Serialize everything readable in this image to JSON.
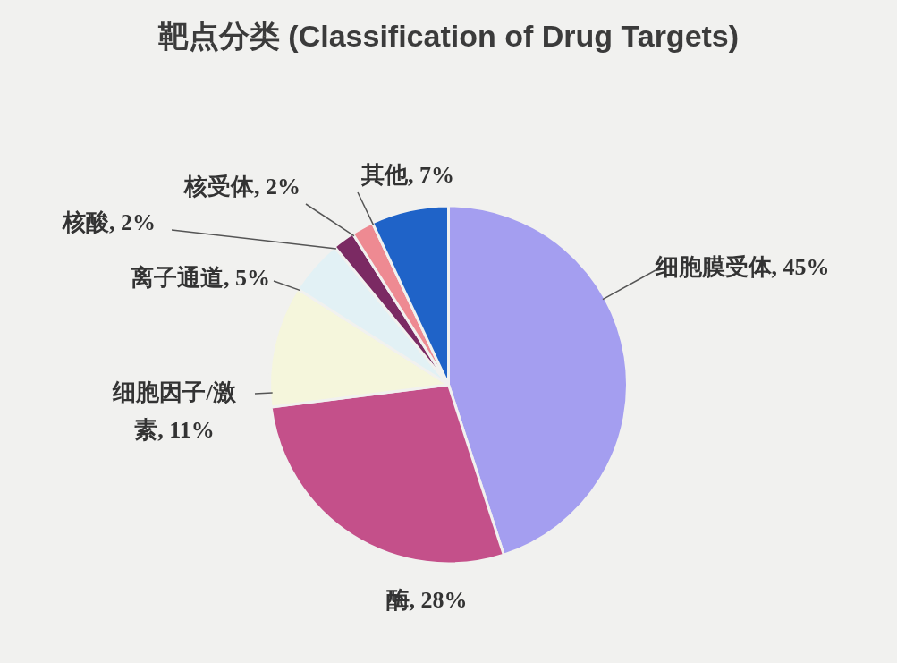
{
  "chart_data": {
    "type": "pie",
    "title": "靶点分类 (Classification of Drug Targets)",
    "categories": [
      "细胞膜受体",
      "酶",
      "细胞因子/激素",
      "离子通道",
      "核酸",
      "核受体",
      "其他"
    ],
    "values": [
      45,
      28,
      11,
      5,
      2,
      2,
      7
    ],
    "colors": [
      "#a49ef0",
      "#c4508a",
      "#f5f6dc",
      "#e2f1f5",
      "#7b2a63",
      "#ee8a92",
      "#1f63c8"
    ],
    "value_labels": [
      "45%",
      "28%",
      "11%",
      "5%",
      "2%",
      "2%",
      "7%"
    ]
  }
}
